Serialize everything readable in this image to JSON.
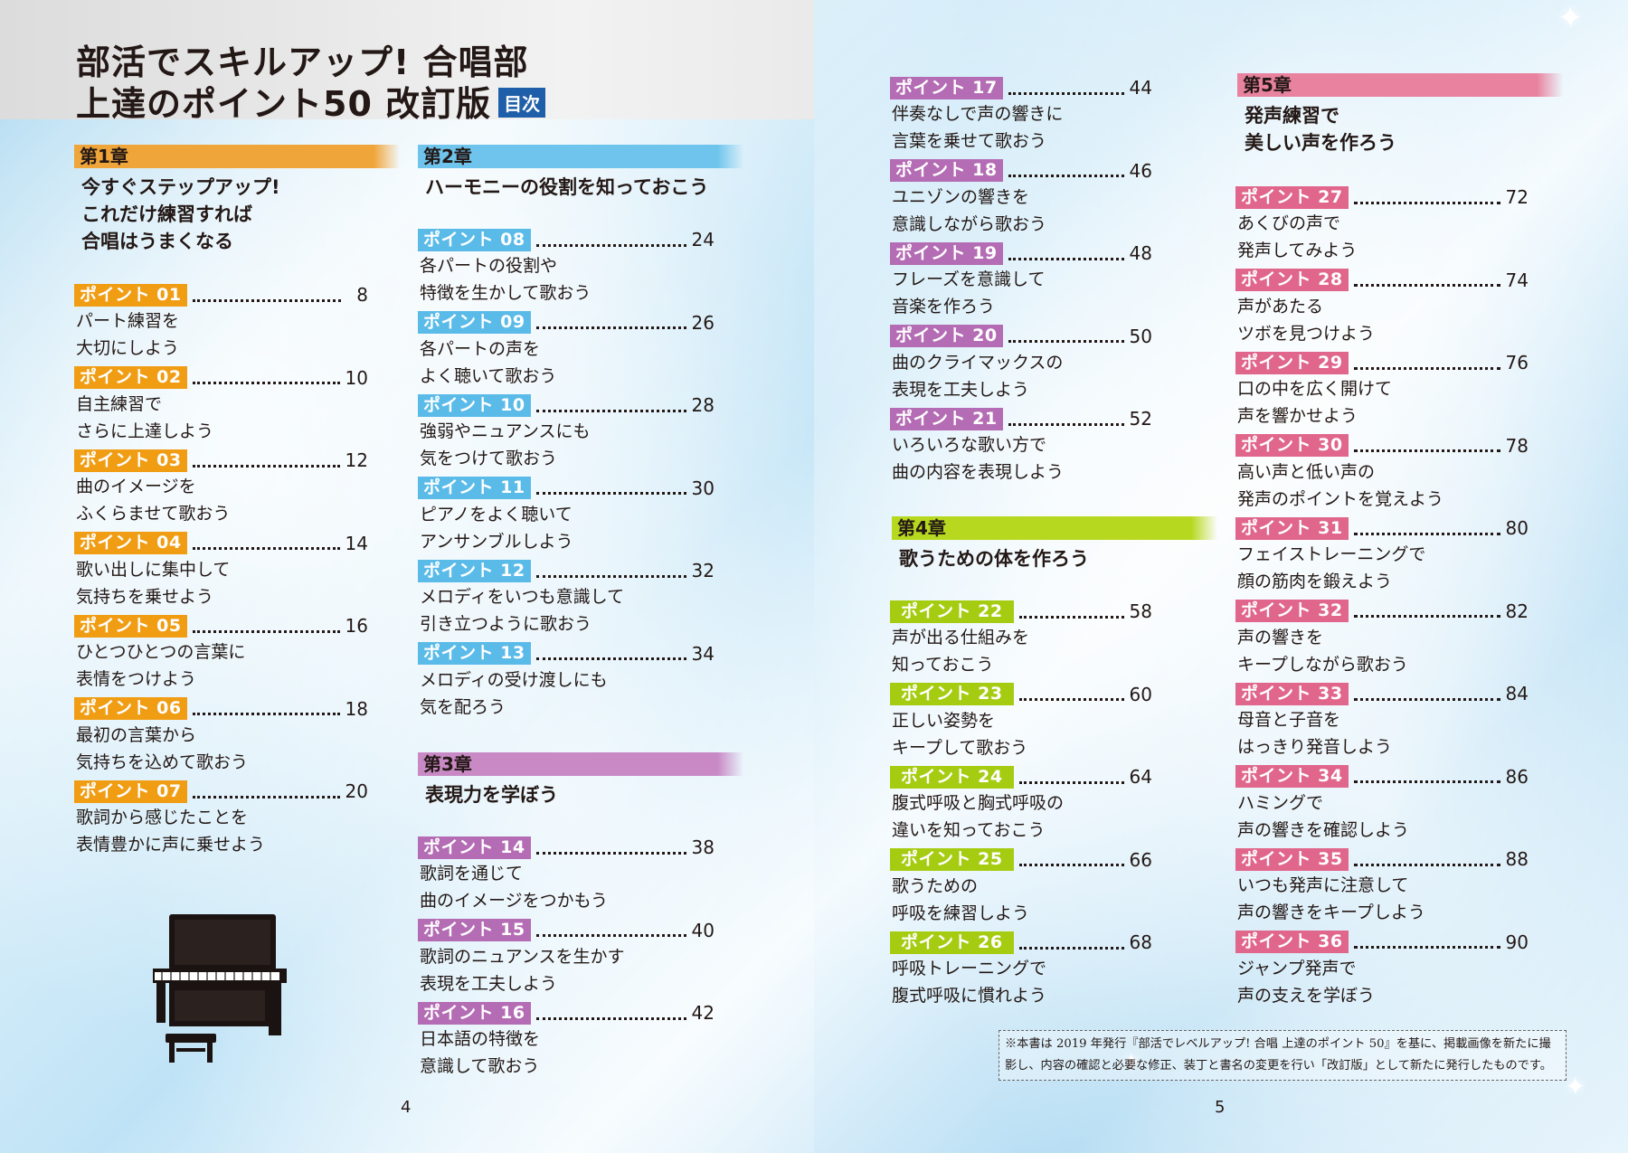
{
  "header": {
    "title_line1": "部活でスキルアップ!  合唱部",
    "title_line2": "上達のポイント50  改訂版",
    "toc_badge": "目次"
  },
  "chapters": [
    {
      "label": "第1章",
      "title": "今すぐステップアップ!\nこれだけ練習すれば\n合唱はうまくなる",
      "points": [
        {
          "label": "ポイント 01",
          "page": "8",
          "desc": "パート練習を\n大切にしよう"
        },
        {
          "label": "ポイント 02",
          "page": "10",
          "desc": "自主練習で\nさらに上達しよう"
        },
        {
          "label": "ポイント 03",
          "page": "12",
          "desc": "曲のイメージを\nふくらませて歌おう"
        },
        {
          "label": "ポイント 04",
          "page": "14",
          "desc": "歌い出しに集中して\n気持ちを乗せよう"
        },
        {
          "label": "ポイント 05",
          "page": "16",
          "desc": "ひとつひとつの言葉に\n表情をつけよう"
        },
        {
          "label": "ポイント 06",
          "page": "18",
          "desc": "最初の言葉から\n気持ちを込めて歌おう"
        },
        {
          "label": "ポイント 07",
          "page": "20",
          "desc": "歌詞から感じたことを\n表情豊かに声に乗せよう"
        }
      ]
    },
    {
      "label": "第2章",
      "title": "ハーモニーの役割を知っておこう",
      "points": [
        {
          "label": "ポイント 08",
          "page": "24",
          "desc": "各パートの役割や\n特徴を生かして歌おう"
        },
        {
          "label": "ポイント 09",
          "page": "26",
          "desc": "各パートの声を\nよく聴いて歌おう"
        },
        {
          "label": "ポイント 10",
          "page": "28",
          "desc": "強弱やニュアンスにも\n気をつけて歌おう"
        },
        {
          "label": "ポイント 11",
          "page": "30",
          "desc": "ピアノをよく聴いて\nアンサンブルしよう"
        },
        {
          "label": "ポイント 12",
          "page": "32",
          "desc": "メロディをいつも意識して\n引き立つように歌おう"
        },
        {
          "label": "ポイント 13",
          "page": "34",
          "desc": "メロディの受け渡しにも\n気を配ろう"
        }
      ]
    },
    {
      "label": "第3章",
      "title": "表現力を学ぼう",
      "points": [
        {
          "label": "ポイント 14",
          "page": "38",
          "desc": "歌詞を通じて\n曲のイメージをつかもう"
        },
        {
          "label": "ポイント 15",
          "page": "40",
          "desc": "歌詞のニュアンスを生かす\n表現を工夫しよう"
        },
        {
          "label": "ポイント 16",
          "page": "42",
          "desc": "日本語の特徴を\n意識して歌おう"
        },
        {
          "label": "ポイント 17",
          "page": "44",
          "desc": "伴奏なしで声の響きに\n言葉を乗せて歌おう"
        },
        {
          "label": "ポイント 18",
          "page": "46",
          "desc": "ユニゾンの響きを\n意識しながら歌おう"
        },
        {
          "label": "ポイント 19",
          "page": "48",
          "desc": "フレーズを意識して\n音楽を作ろう"
        },
        {
          "label": "ポイント 20",
          "page": "50",
          "desc": "曲のクライマックスの\n表現を工夫しよう"
        },
        {
          "label": "ポイント 21",
          "page": "52",
          "desc": "いろいろな歌い方で\n曲の内容を表現しよう"
        }
      ]
    },
    {
      "label": "第4章",
      "title": "歌うための体を作ろう",
      "points": [
        {
          "label": "ポイント 22",
          "page": "58",
          "desc": "声が出る仕組みを\n知っておこう"
        },
        {
          "label": "ポイント 23",
          "page": "60",
          "desc": "正しい姿勢を\nキープして歌おう"
        },
        {
          "label": "ポイント 24",
          "page": "64",
          "desc": "腹式呼吸と胸式呼吸の\n違いを知っておこう"
        },
        {
          "label": "ポイント 25",
          "page": "66",
          "desc": "歌うための\n呼吸を練習しよう"
        },
        {
          "label": "ポイント 26",
          "page": "68",
          "desc": "呼吸トレーニングで\n腹式呼吸に慣れよう"
        }
      ]
    },
    {
      "label": "第5章",
      "title": "発声練習で\n美しい声を作ろう",
      "points": [
        {
          "label": "ポイント 27",
          "page": "72",
          "desc": "あくびの声で\n発声してみよう"
        },
        {
          "label": "ポイント 28",
          "page": "74",
          "desc": "声があたる\nツボを見つけよう"
        },
        {
          "label": "ポイント 29",
          "page": "76",
          "desc": "口の中を広く開けて\n声を響かせよう"
        },
        {
          "label": "ポイント 30",
          "page": "78",
          "desc": "高い声と低い声の\n発声のポイントを覚えよう"
        },
        {
          "label": "ポイント 31",
          "page": "80",
          "desc": "フェイストレーニングで\n顔の筋肉を鍛えよう"
        },
        {
          "label": "ポイント 32",
          "page": "82",
          "desc": "声の響きを\nキープしながら歌おう"
        },
        {
          "label": "ポイント 33",
          "page": "84",
          "desc": "母音と子音を\nはっきり発音しよう"
        },
        {
          "label": "ポイント 34",
          "page": "86",
          "desc": "ハミングで\n声の響きを確認しよう"
        },
        {
          "label": "ポイント 35",
          "page": "88",
          "desc": "いつも発声に注意して\n声の響きをキープしよう"
        },
        {
          "label": "ポイント 36",
          "page": "90",
          "desc": "ジャンプ発声で\n声の支えを学ぼう"
        }
      ]
    }
  ],
  "footer_note": "※本書は 2019 年発行『部活でレベルアップ! 合唱 上達のポイント 50』を基に、掲載画像を新たに撮影し、内容の確認と必要な修正、装丁と書名の変更を行い「改訂版」として新たに発行したものです。",
  "page_numbers": {
    "left": "4",
    "right": "5"
  },
  "icons": {
    "illustration": "piano-icon",
    "decor": "sparkle-icon"
  },
  "colors": {
    "ch1": "#f09d14",
    "ch2": "#5bbbe8",
    "ch3": "#b46db4",
    "ch4": "#a6cc12",
    "ch5": "#e0668c",
    "toc_badge": "#1f5ea8"
  }
}
